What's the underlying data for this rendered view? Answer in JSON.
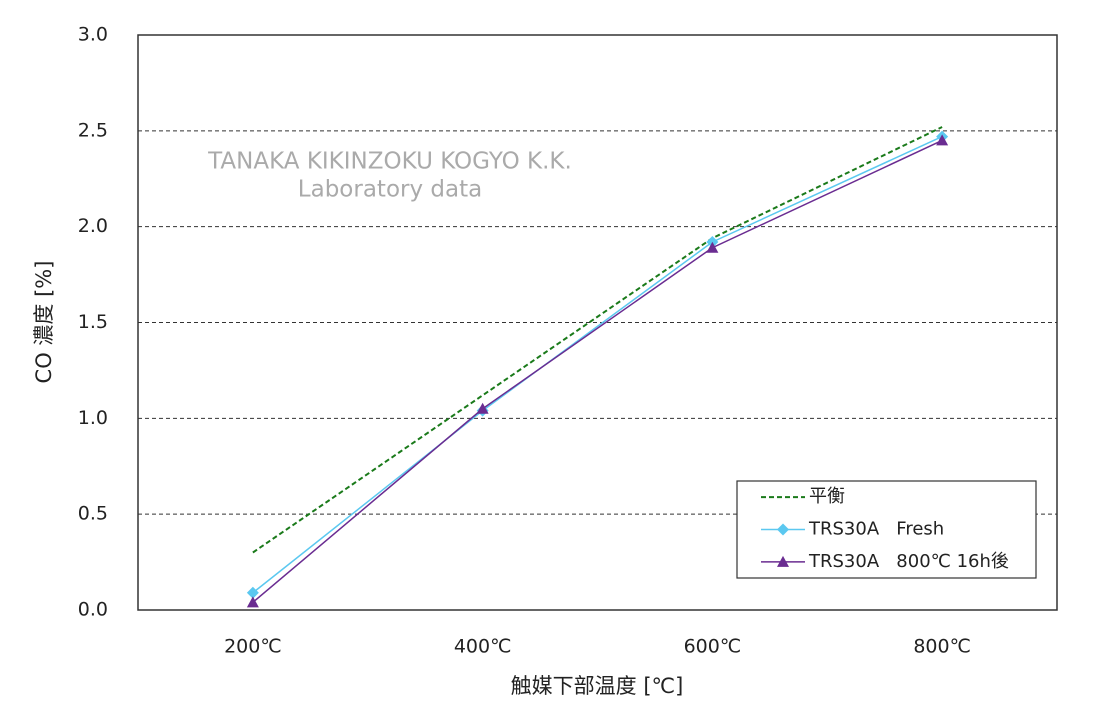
{
  "chart_data": {
    "type": "line",
    "x_label": "触媒下部温度 [℃]",
    "y_label": "CO 濃度 [%]",
    "annotations": [
      "TANAKA KIKINZOKU KOGYO K.K.",
      "Laboratory data"
    ],
    "categories": [
      "200℃",
      "400℃",
      "600℃",
      "800℃"
    ],
    "series": [
      {
        "name": "平衡",
        "color": "#1a7a1a",
        "dash": true,
        "marker": null,
        "values": [
          0.3,
          1.12,
          1.94,
          2.52
        ]
      },
      {
        "name": "TRS30A   Fresh",
        "color": "#5bc8f0",
        "dash": false,
        "marker": "diamond",
        "values": [
          0.09,
          1.04,
          1.92,
          2.47
        ]
      },
      {
        "name": "TRS30A   800℃ 16h後",
        "color": "#6a2c91",
        "dash": false,
        "marker": "triangle",
        "values": [
          0.04,
          1.05,
          1.89,
          2.45
        ]
      }
    ],
    "ylim": [
      0,
      3
    ],
    "yticks": [
      {
        "value": 0,
        "label": "0.0"
      },
      0.5,
      {
        "value": 1,
        "label": "1.0"
      },
      1.5,
      {
        "value": 2,
        "label": "2.0"
      },
      2.5,
      {
        "value": 3,
        "label": "3.0"
      }
    ],
    "grid": true,
    "legend": "lower-right"
  }
}
